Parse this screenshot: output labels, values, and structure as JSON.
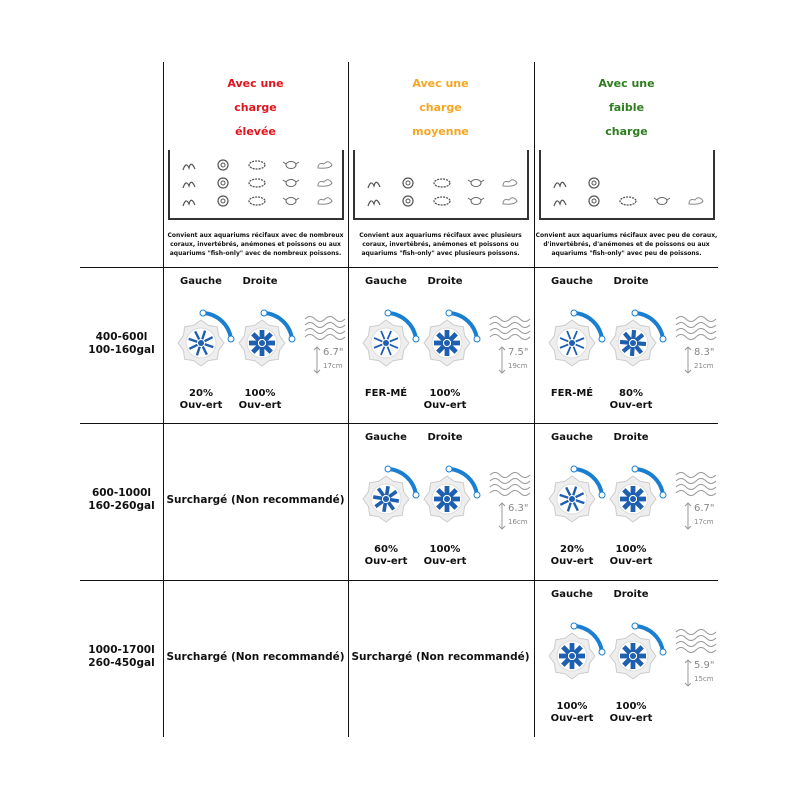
{
  "columns": [
    {
      "title": [
        "Avec une",
        "charge",
        "élevée"
      ],
      "color": "#e0141e",
      "description": "Convient aux aquariums récifaux avec de nombreux coraux, invertébrés, anémones et poissons ou aux aquariums \"fish-only\" avec de nombreux poissons.",
      "creature_rows": 3
    },
    {
      "title": [
        "Avec une",
        "charge",
        "moyenne"
      ],
      "color": "#f5a623",
      "description": "Convient aux aquariums récifaux avec plusieurs coraux, invertébrés, anémones et poissons ou aquariums \"fish-only\" avec plusieurs poissons.",
      "creature_rows": 2
    },
    {
      "title": [
        "Avec une",
        "faible",
        "charge"
      ],
      "color": "#2e7d1e",
      "description": "Convient aux aquariums récifaux avec peu de coraux, d'invertébrés, d'anémones et de poissons ou aux aquariums \"fish-only\" avec peu de poissons.",
      "creature_rows": 1
    }
  ],
  "rows": [
    {
      "label": [
        "400-600l",
        "100-160gal"
      ],
      "cells": [
        {
          "left": "Gauche",
          "right": "Droite",
          "left_value": [
            "20%",
            "Ouv-ert"
          ],
          "right_value": [
            "100%",
            "Ouv-ert"
          ],
          "left_open": 0.2,
          "right_open": 1,
          "depth_in": "6.7\"",
          "depth_cm": "17cm"
        },
        {
          "left": "Gauche",
          "right": "Droite",
          "left_value": [
            "FER-MÉ"
          ],
          "right_value": [
            "100%",
            "Ouv-ert"
          ],
          "left_open": 0,
          "right_open": 1,
          "depth_in": "7.5\"",
          "depth_cm": "19cm"
        },
        {
          "left": "Gauche",
          "right": "Droite",
          "left_value": [
            "FER-MÉ"
          ],
          "right_value": [
            "80%",
            "Ouv-ert"
          ],
          "left_open": 0,
          "right_open": 0.8,
          "depth_in": "8.3\"",
          "depth_cm": "21cm"
        }
      ]
    },
    {
      "label": [
        "600-1000l",
        "160-260gal"
      ],
      "cells": [
        {
          "overload": "Surchargé (Non recommandé)"
        },
        {
          "left": "Gauche",
          "right": "Droite",
          "left_value": [
            "60%",
            "Ouv-ert"
          ],
          "right_value": [
            "100%",
            "Ouv-ert"
          ],
          "left_open": 0.6,
          "right_open": 1,
          "depth_in": "6.3\"",
          "depth_cm": "16cm"
        },
        {
          "left": "Gauche",
          "right": "Droite",
          "left_value": [
            "20%",
            "Ouv-ert"
          ],
          "right_value": [
            "100%",
            "Ouv-ert"
          ],
          "left_open": 0.2,
          "right_open": 1,
          "depth_in": "6.7\"",
          "depth_cm": "17cm"
        }
      ]
    },
    {
      "label": [
        "1000-1700l",
        "260-450gal"
      ],
      "cells": [
        {
          "overload": "Surchargé (Non recommandé)"
        },
        {
          "overload": "Surchargé (Non recommandé)"
        },
        {
          "left": "Gauche",
          "right": "Droite",
          "left_value": [
            "100%",
            "Ouv-ert"
          ],
          "right_value": [
            "100%",
            "Ouv-ert"
          ],
          "left_open": 1,
          "right_open": 1,
          "depth_in": "5.9\"",
          "depth_cm": "15cm"
        }
      ]
    }
  ],
  "colors": {
    "knob_blue": "#1f5fb0",
    "arc_blue": "#1a7fd0",
    "grid": "#111111"
  }
}
